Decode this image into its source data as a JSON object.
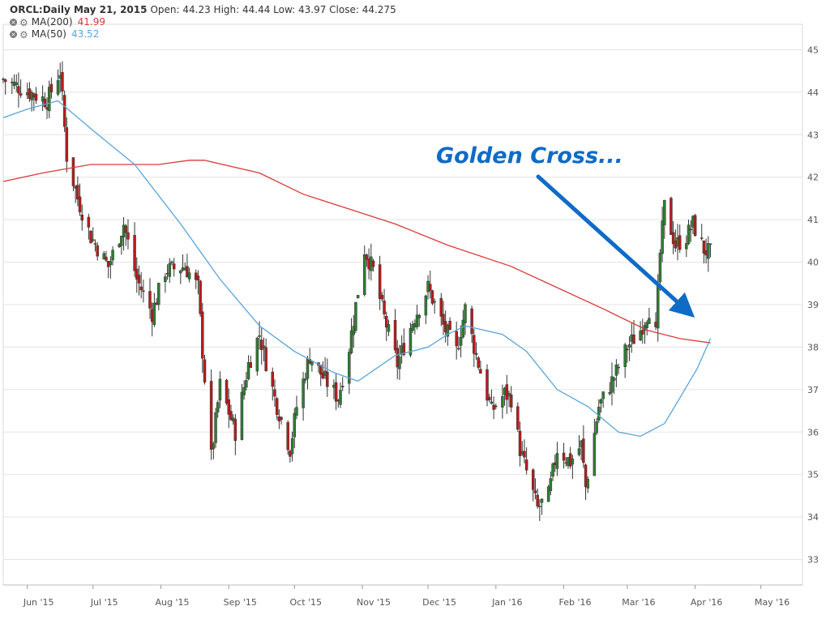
{
  "header": {
    "title": "ORCL:Daily May 21, 2015",
    "ohlc": "Open: 44.23 High: 44.44 Low: 43.97 Close: 44.275"
  },
  "indicators": [
    {
      "label": "MA(200)",
      "value": "41.99",
      "color": "#d93a3a",
      "icons": [
        "close-icon",
        "gear-icon"
      ]
    },
    {
      "label": "MA(50)",
      "value": "43.52",
      "color": "#5aa4dc",
      "icons": [
        "close-icon",
        "gear-icon"
      ]
    }
  ],
  "annotation": {
    "text": "Golden Cross...",
    "color": "#0f6bc6",
    "arrow": "arrow-down-right-icon"
  },
  "chart_data": {
    "type": "candlestick",
    "symbol": "ORCL",
    "interval": "Daily",
    "y_ticks": [
      33,
      34,
      35,
      36,
      37,
      38,
      39,
      40,
      41,
      42,
      43,
      44,
      45
    ],
    "ylim": [
      32.4,
      45.6
    ],
    "x_ticks": [
      "Jun '15",
      "Jul '15",
      "Aug '15",
      "Sep '15",
      "Oct '15",
      "Nov '15",
      "Dec '15",
      "Jan '16",
      "Feb '16",
      "Mar '16",
      "Apr '16",
      "May '16"
    ],
    "xlim": [
      "2015-05-21",
      "2016-05-20"
    ],
    "grid": true,
    "candle_up_color": "#2e7d32",
    "candle_down_color": "#b71c1c",
    "price_anchors": [
      [
        "2015-05-21",
        44.3
      ],
      [
        "2015-06-02",
        44.0
      ],
      [
        "2015-06-10",
        43.8
      ],
      [
        "2015-06-16",
        44.5
      ],
      [
        "2015-06-19",
        42.5
      ],
      [
        "2015-06-24",
        41.5
      ],
      [
        "2015-06-30",
        40.6
      ],
      [
        "2015-07-08",
        39.9
      ],
      [
        "2015-07-15",
        40.9
      ],
      [
        "2015-07-21",
        39.6
      ],
      [
        "2015-07-28",
        38.8
      ],
      [
        "2015-08-03",
        39.8
      ],
      [
        "2015-08-12",
        39.9
      ],
      [
        "2015-08-18",
        39.4
      ],
      [
        "2015-08-20",
        37.9
      ],
      [
        "2015-08-24",
        35.4
      ],
      [
        "2015-08-28",
        37.1
      ],
      [
        "2015-09-04",
        36.0
      ],
      [
        "2015-09-10",
        37.6
      ],
      [
        "2015-09-15",
        38.3
      ],
      [
        "2015-09-22",
        36.8
      ],
      [
        "2015-09-29",
        35.6
      ],
      [
        "2015-10-02",
        36.6
      ],
      [
        "2015-10-08",
        37.8
      ],
      [
        "2015-10-14",
        37.3
      ],
      [
        "2015-10-21",
        36.8
      ],
      [
        "2015-10-26",
        38.0
      ],
      [
        "2015-11-02",
        40.3
      ],
      [
        "2015-11-06",
        39.8
      ],
      [
        "2015-11-11",
        38.7
      ],
      [
        "2015-11-17",
        37.6
      ],
      [
        "2015-11-24",
        38.6
      ],
      [
        "2015-12-01",
        39.4
      ],
      [
        "2015-12-08",
        38.5
      ],
      [
        "2015-12-14",
        37.9
      ],
      [
        "2015-12-18",
        38.9
      ],
      [
        "2015-12-23",
        37.8
      ],
      [
        "2015-12-30",
        36.5
      ],
      [
        "2016-01-05",
        36.9
      ],
      [
        "2016-01-08",
        36.8
      ],
      [
        "2016-01-12",
        35.6
      ],
      [
        "2016-01-20",
        34.2
      ],
      [
        "2016-01-25",
        34.5
      ],
      [
        "2016-01-29",
        35.6
      ],
      [
        "2016-02-04",
        35.3
      ],
      [
        "2016-02-09",
        35.7
      ],
      [
        "2016-02-11",
        34.7
      ],
      [
        "2016-02-17",
        36.6
      ],
      [
        "2016-02-24",
        37.3
      ],
      [
        "2016-03-01",
        38.0
      ],
      [
        "2016-03-07",
        38.4
      ],
      [
        "2016-03-11",
        38.9
      ],
      [
        "2016-03-14",
        38.3
      ],
      [
        "2016-03-16",
        40.2
      ],
      [
        "2016-03-18",
        41.3
      ],
      [
        "2016-03-23",
        40.4
      ],
      [
        "2016-03-28",
        40.6
      ],
      [
        "2016-03-31",
        40.9
      ],
      [
        "2016-04-05",
        40.3
      ],
      [
        "2016-04-08",
        40.2
      ]
    ],
    "series": [
      {
        "name": "MA(200)",
        "color": "#d93a3a",
        "points": [
          [
            "2015-05-21",
            41.9
          ],
          [
            "2015-06-08",
            42.1
          ],
          [
            "2015-06-30",
            42.3
          ],
          [
            "2015-07-31",
            42.3
          ],
          [
            "2015-08-14",
            42.4
          ],
          [
            "2015-08-21",
            42.4
          ],
          [
            "2015-09-15",
            42.1
          ],
          [
            "2015-10-05",
            41.6
          ],
          [
            "2015-10-23",
            41.3
          ],
          [
            "2015-11-16",
            40.9
          ],
          [
            "2015-12-10",
            40.4
          ],
          [
            "2016-01-08",
            39.9
          ],
          [
            "2016-01-29",
            39.4
          ],
          [
            "2016-02-19",
            38.9
          ],
          [
            "2016-03-10",
            38.4
          ],
          [
            "2016-03-25",
            38.2
          ],
          [
            "2016-04-08",
            38.1
          ]
        ]
      },
      {
        "name": "MA(50)",
        "color": "#5aa4dc",
        "points": [
          [
            "2015-05-21",
            43.4
          ],
          [
            "2015-06-01",
            43.6
          ],
          [
            "2015-06-15",
            43.8
          ],
          [
            "2015-07-01",
            43.1
          ],
          [
            "2015-07-20",
            42.3
          ],
          [
            "2015-08-10",
            40.9
          ],
          [
            "2015-08-28",
            39.6
          ],
          [
            "2015-09-15",
            38.5
          ],
          [
            "2015-10-01",
            37.9
          ],
          [
            "2015-10-19",
            37.4
          ],
          [
            "2015-10-30",
            37.2
          ],
          [
            "2015-11-16",
            37.8
          ],
          [
            "2015-12-01",
            38.0
          ],
          [
            "2015-12-10",
            38.3
          ],
          [
            "2015-12-18",
            38.5
          ],
          [
            "2016-01-04",
            38.3
          ],
          [
            "2016-01-15",
            37.9
          ],
          [
            "2016-01-29",
            37.0
          ],
          [
            "2016-02-12",
            36.6
          ],
          [
            "2016-02-26",
            36.0
          ],
          [
            "2016-03-07",
            35.9
          ],
          [
            "2016-03-18",
            36.2
          ],
          [
            "2016-03-25",
            36.8
          ],
          [
            "2016-04-02",
            37.5
          ],
          [
            "2016-04-08",
            38.2
          ]
        ]
      }
    ]
  }
}
